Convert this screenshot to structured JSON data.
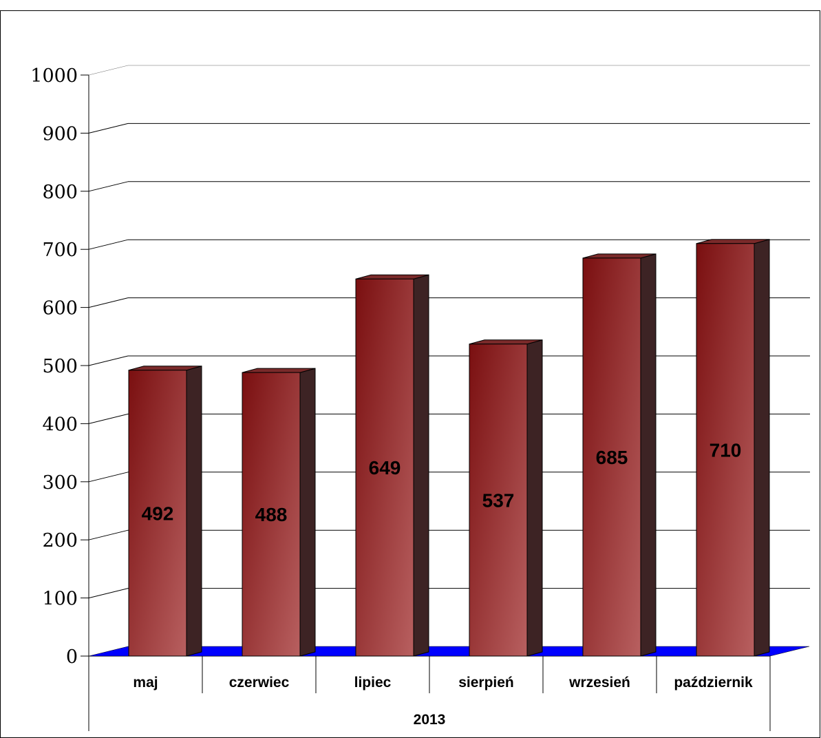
{
  "chart_data": {
    "type": "bar",
    "categories": [
      "maj",
      "czerwiec",
      "lipiec",
      "sierpień",
      "wrzesień",
      "październik"
    ],
    "values": [
      492,
      488,
      649,
      537,
      685,
      710
    ],
    "data_labels": [
      "492",
      "488",
      "649",
      "537",
      "685",
      "710"
    ],
    "group_label": "2013",
    "title": "",
    "xlabel": "",
    "ylabel": "",
    "ylim": [
      0,
      1000
    ],
    "yticks": [
      0,
      100,
      200,
      300,
      400,
      500,
      600,
      700,
      800,
      900,
      1000
    ],
    "grid": true,
    "legend": "none",
    "style": "3d",
    "colors": {
      "bar_dark": "#7a0f10",
      "bar_light": "#b86060",
      "bar_side": "#3d2324",
      "bar_top": "#7a2a2a",
      "floor": "#0000ff",
      "grid": "#000000"
    }
  }
}
